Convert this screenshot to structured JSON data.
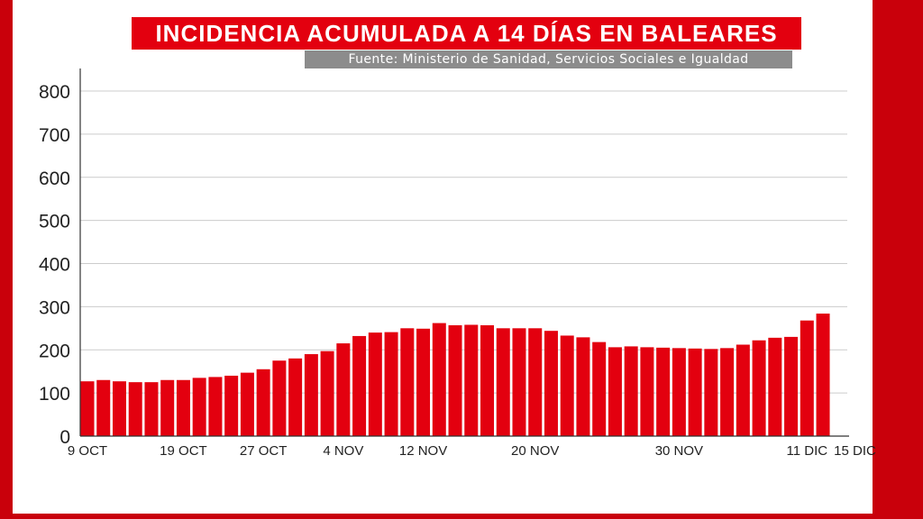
{
  "title": "INCIDENCIA ACUMULADA A 14 DÍAS EN BALEARES",
  "subtitle": "Fuente: Ministerio de Sanidad, Servicios Sociales e Igualdad",
  "colors": {
    "bar": "#e3000f",
    "frame": "#c9000b",
    "title_bg": "#e3000f",
    "subtitle_bg": "#8c8c8c",
    "grid": "#cccccc"
  },
  "chart_data": {
    "type": "bar",
    "title": "INCIDENCIA ACUMULADA A 14 DÍAS EN BALEARES",
    "subtitle": "Fuente: Ministerio de Sanidad, Servicios Sociales e Igualdad",
    "xlabel": "",
    "ylabel": "",
    "ylim": [
      0,
      800
    ],
    "yticks": [
      0,
      100,
      200,
      300,
      400,
      500,
      600,
      700,
      800
    ],
    "grid": true,
    "x_tick_labels": [
      {
        "index": 0,
        "label": "9 OCT"
      },
      {
        "index": 6,
        "label": "19 OCT"
      },
      {
        "index": 11,
        "label": "27 OCT"
      },
      {
        "index": 16,
        "label": "4 NOV"
      },
      {
        "index": 21,
        "label": "12 NOV"
      },
      {
        "index": 28,
        "label": "20 NOV"
      },
      {
        "index": 37,
        "label": "30 NOV"
      },
      {
        "index": 45,
        "label": "11 DIC"
      },
      {
        "index": 48,
        "label": "15 DIC"
      }
    ],
    "values": [
      127,
      130,
      127,
      125,
      125,
      130,
      130,
      135,
      137,
      140,
      147,
      155,
      175,
      180,
      190,
      197,
      215,
      232,
      240,
      241,
      250,
      249,
      262,
      257,
      258,
      257,
      250,
      250,
      250,
      244,
      233,
      229,
      218,
      206,
      208,
      206,
      205,
      204,
      203,
      202,
      204,
      212,
      222,
      228,
      230,
      268,
      284
    ]
  }
}
